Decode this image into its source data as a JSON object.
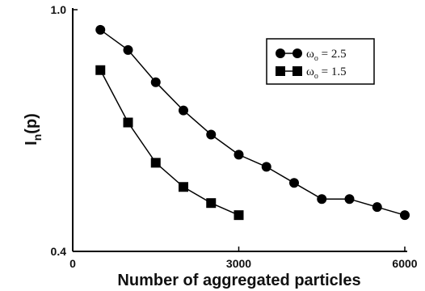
{
  "chart_data": {
    "type": "line",
    "title": "",
    "xlabel": "Number of aggregated particles",
    "ylabel": "I_n(p)",
    "ylabel_main": "I",
    "ylabel_sub": "n",
    "ylabel_tail": "(p)",
    "xlim": [
      0,
      6000
    ],
    "ylim": [
      0.4,
      1.0
    ],
    "x_ticks": [
      0,
      3000,
      6000
    ],
    "x_tick_labels": [
      "0",
      "3000",
      "6000"
    ],
    "y_ticks": [
      0.4,
      1.0
    ],
    "y_tick_labels": [
      "0.4",
      "1.0"
    ],
    "grid": false,
    "legend_position": "top-right",
    "series": [
      {
        "name": "ω_o = 2.5",
        "legend_symbol": "ω",
        "legend_sub": "o",
        "legend_value": " = 2.5",
        "marker": "circle",
        "x": [
          500,
          1000,
          1500,
          2000,
          2500,
          3000,
          3500,
          4000,
          4500,
          5000,
          5500,
          6000
        ],
        "y": [
          0.95,
          0.9,
          0.82,
          0.75,
          0.69,
          0.64,
          0.61,
          0.57,
          0.53,
          0.53,
          0.51,
          0.49
        ]
      },
      {
        "name": "ω_o = 1.5",
        "legend_symbol": "ω",
        "legend_sub": "o",
        "legend_value": " = 1.5",
        "marker": "square",
        "x": [
          500,
          1000,
          1500,
          2000,
          2500,
          3000
        ],
        "y": [
          0.85,
          0.72,
          0.62,
          0.56,
          0.52,
          0.49
        ]
      }
    ]
  }
}
